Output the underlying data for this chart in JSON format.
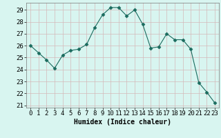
{
  "x": [
    0,
    1,
    2,
    3,
    4,
    5,
    6,
    7,
    8,
    9,
    10,
    11,
    12,
    13,
    14,
    15,
    16,
    17,
    18,
    19,
    20,
    21,
    22,
    23
  ],
  "y": [
    26.0,
    25.4,
    24.8,
    24.1,
    25.2,
    25.6,
    25.7,
    26.1,
    27.5,
    28.6,
    29.2,
    29.2,
    28.5,
    29.0,
    27.8,
    25.8,
    25.9,
    27.0,
    26.5,
    26.5,
    25.7,
    22.9,
    22.1,
    21.2
  ],
  "line_color": "#1a6b5e",
  "marker": "D",
  "marker_size": 2.5,
  "bg_color": "#d8f5f0",
  "grid_color_v": "#d4b8b8",
  "grid_color_h": "#d4b8b8",
  "xlabel": "Humidex (Indice chaleur)",
  "xlim": [
    -0.5,
    23.5
  ],
  "ylim": [
    20.8,
    29.6
  ],
  "yticks": [
    21,
    22,
    23,
    24,
    25,
    26,
    27,
    28,
    29
  ],
  "xticks": [
    0,
    1,
    2,
    3,
    4,
    5,
    6,
    7,
    8,
    9,
    10,
    11,
    12,
    13,
    14,
    15,
    16,
    17,
    18,
    19,
    20,
    21,
    22,
    23
  ],
  "xlabel_fontsize": 7,
  "tick_fontsize": 6.5
}
